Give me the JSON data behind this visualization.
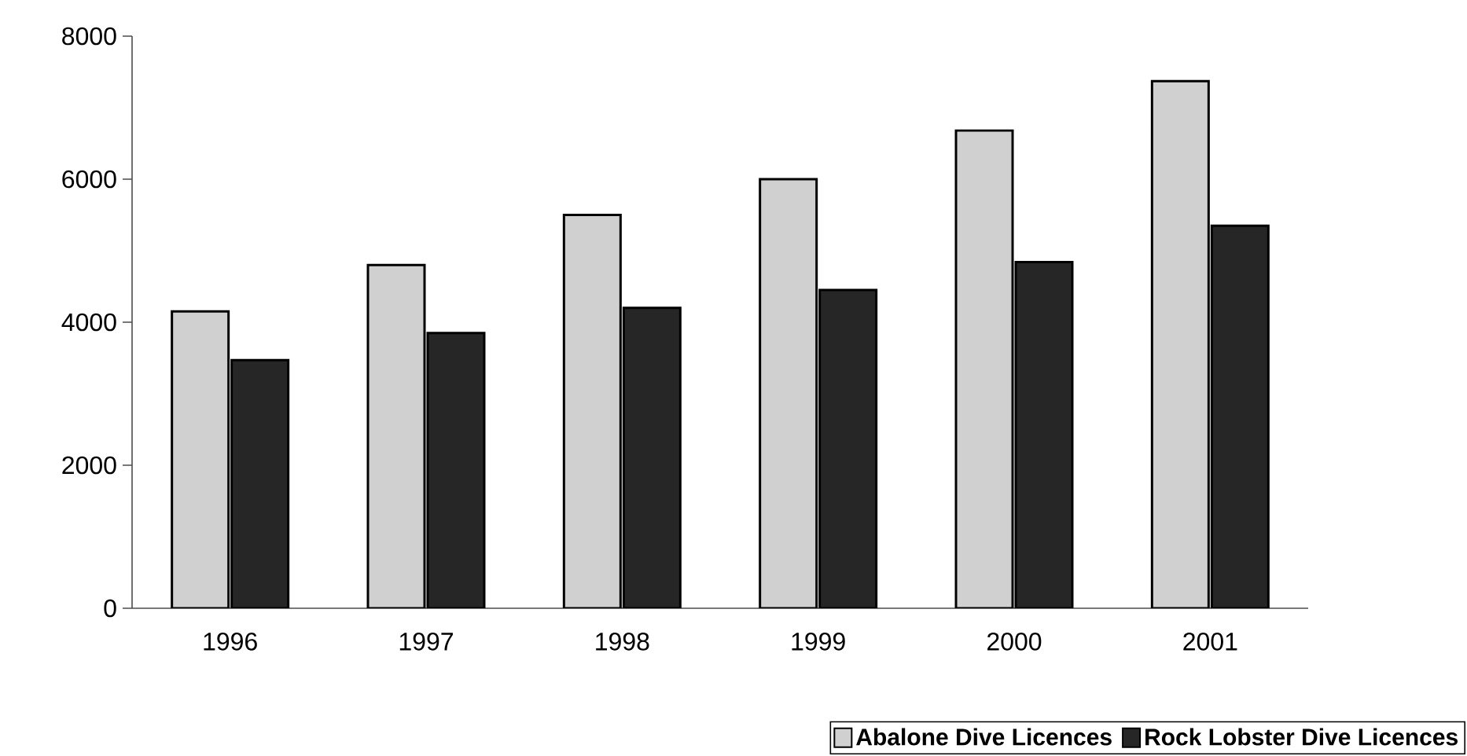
{
  "chart_data": {
    "type": "bar",
    "categories": [
      "1996",
      "1997",
      "1998",
      "1999",
      "2000",
      "2001"
    ],
    "series": [
      {
        "name": "Abalone Dive Licences",
        "color": "#d0d0d0",
        "values": [
          4150,
          4800,
          5500,
          6000,
          6680,
          7370
        ]
      },
      {
        "name": "Rock Lobster Dive Licences",
        "color": "#262626",
        "values": [
          3470,
          3850,
          4200,
          4450,
          4840,
          5350
        ]
      }
    ],
    "ylim": [
      0,
      8000
    ],
    "yticks": [
      0,
      2000,
      4000,
      6000,
      8000
    ],
    "grid": false,
    "legend": "bottom right"
  }
}
